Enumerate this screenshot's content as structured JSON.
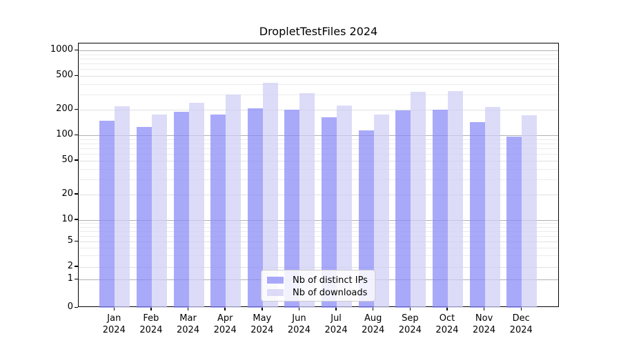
{
  "title": "DropletTestFiles 2024",
  "colors": {
    "background": "#ffffff",
    "spine": "#000000",
    "text": "#000000",
    "grid_major": "#b0b0b0",
    "grid_mid": "#e0e0e0",
    "grid_minor": "#ebebeb",
    "ips_bar_hex": "#8888f8",
    "ips_bar_alpha": 0.72,
    "downloads_bar_hex": "#cecef5",
    "downloads_bar_alpha": 0.72,
    "legend_border": "#cccccc"
  },
  "chart_data": {
    "type": "bar",
    "title": "DropletTestFiles 2024",
    "xlabel": "",
    "ylabel": "",
    "yscale": "symlog",
    "ylim": [
      0,
      1200
    ],
    "grid": "both",
    "legend_position": "lower center",
    "categories": [
      "Jan",
      "Feb",
      "Mar",
      "Apr",
      "May",
      "Jun",
      "Jul",
      "Aug",
      "Sep",
      "Oct",
      "Nov",
      "Dec"
    ],
    "year_label": "2024",
    "yticks": [
      0,
      1,
      2,
      5,
      10,
      20,
      50,
      100,
      200,
      500,
      1000
    ],
    "series": [
      {
        "name": "Nb of distinct IPs",
        "values": [
          147,
          126,
          190,
          176,
          209,
          201,
          164,
          115,
          196,
          200,
          143,
          97
        ]
      },
      {
        "name": "Nb of downloads",
        "values": [
          221,
          176,
          241,
          303,
          416,
          316,
          226,
          175,
          326,
          334,
          217,
          171
        ]
      }
    ]
  }
}
